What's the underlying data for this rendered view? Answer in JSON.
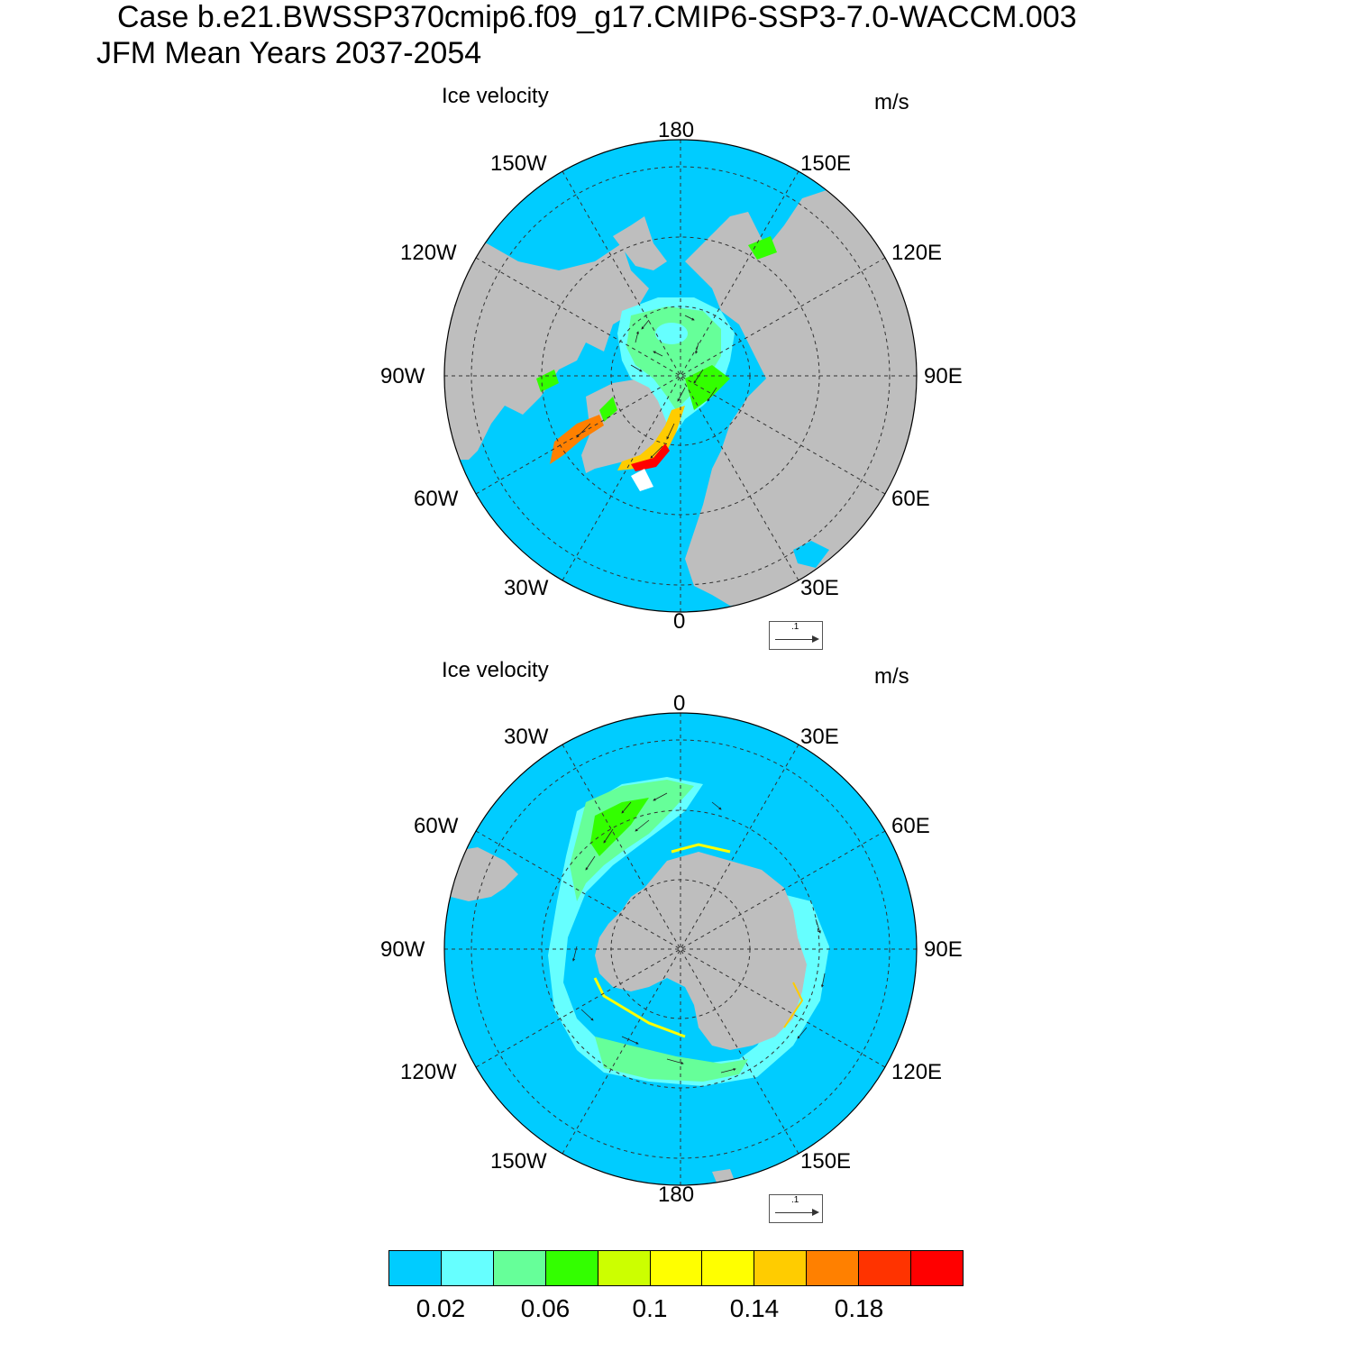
{
  "title": {
    "line1": "Case b.e21.BWSSP370cmip6.f09_g17.CMIP6-SSP3-7.0-WACCM.003",
    "line2": "JFM Mean   Years 2037-2054"
  },
  "panels": [
    {
      "id": "north",
      "label": "Ice velocity",
      "units": "m/s",
      "lon_labels": [
        "180",
        "150E",
        "120E",
        "90E",
        "60E",
        "30E",
        "0",
        "30W",
        "60W",
        "90W",
        "120W",
        "150W"
      ],
      "ref_vector_label": ".1"
    },
    {
      "id": "south",
      "label": "Ice velocity",
      "units": "m/s",
      "lon_labels": [
        "0",
        "30E",
        "60E",
        "90E",
        "120E",
        "150E",
        "180",
        "150W",
        "120W",
        "90W",
        "60W",
        "30W"
      ],
      "ref_vector_label": ".1"
    }
  ],
  "colors": {
    "ocean": "#00ccff",
    "land": "#bebebe"
  },
  "colorbar": {
    "colors": [
      "#00ccff",
      "#66ffff",
      "#66ff99",
      "#33ff00",
      "#ccff00",
      "#ffff00",
      "#ffff00",
      "#ffcc00",
      "#ff8000",
      "#ff3300",
      "#ff0000"
    ],
    "labels": [
      "0.02",
      "0.06",
      "0.1",
      "0.14",
      "0.18"
    ]
  }
}
